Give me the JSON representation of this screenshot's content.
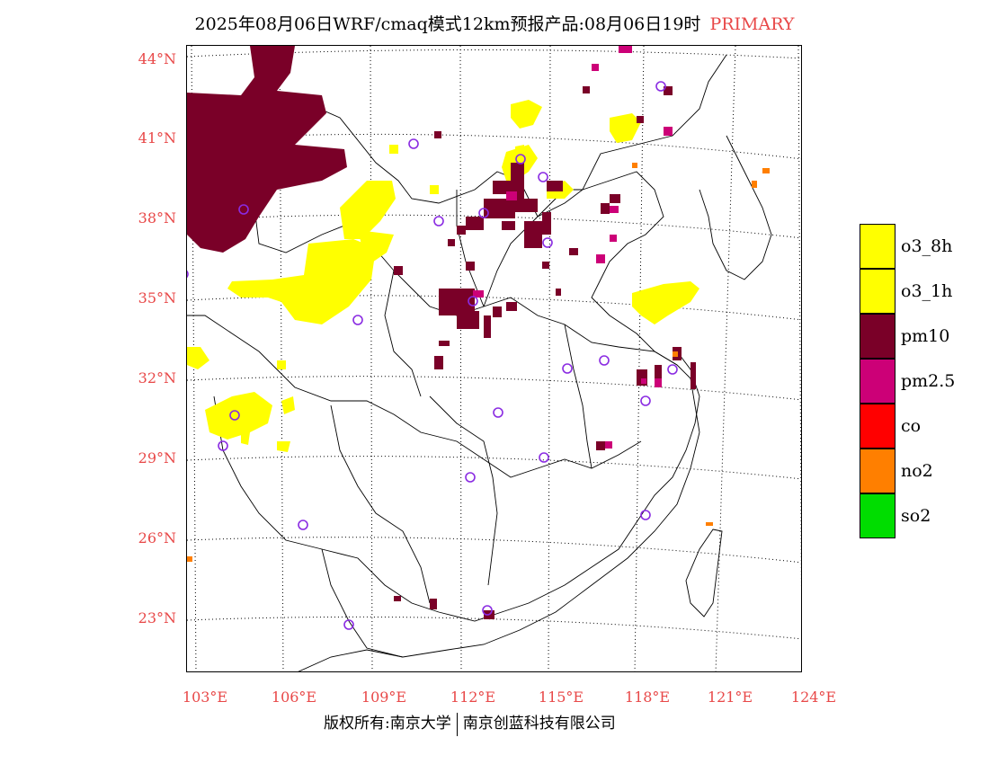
{
  "title": {
    "main": "2025年08月06日WRF/cmaq模式12km预报产品:08月06日19时",
    "tag": "PRIMARY"
  },
  "lat_labels": [
    "44°N",
    "41°N",
    "38°N",
    "35°N",
    "32°N",
    "29°N",
    "26°N",
    "23°N"
  ],
  "lon_labels": [
    "103°E",
    "106°E",
    "109°E",
    "112°E",
    "115°E",
    "118°E",
    "121°E",
    "124°E"
  ],
  "legend": [
    {
      "label": "o3_8h",
      "color": "#ffff00"
    },
    {
      "label": "o3_1h",
      "color": "#ffff00"
    },
    {
      "label": "pm10",
      "color": "#7a0028"
    },
    {
      "label": "pm2.5",
      "color": "#cc0077"
    },
    {
      "label": "co",
      "color": "#ff0000"
    },
    {
      "label": "no2",
      "color": "#ff7f00"
    },
    {
      "label": "so2",
      "color": "#00dd00"
    }
  ],
  "colors": {
    "label_red": "#e84848",
    "station_circle": "#8a2be2",
    "ozone": "#ffff00",
    "pm10": "#7a0028",
    "pm25": "#cc0077",
    "no2": "#ff7f00"
  },
  "footer": {
    "left": "版权所有:南京大学",
    "right": "南京创蓝科技有限公司"
  }
}
